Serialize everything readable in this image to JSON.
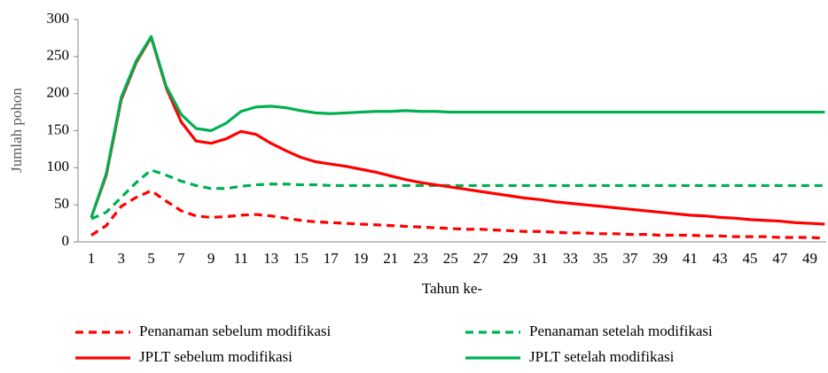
{
  "chart_data": {
    "type": "line",
    "y_label": "Jumlah pohon",
    "x_label": "Tahun ke-",
    "categories": [
      "1",
      null,
      "3",
      null,
      "5",
      null,
      "7",
      null,
      "9",
      null,
      "11",
      null,
      "13",
      null,
      "15",
      null,
      "17",
      null,
      "19",
      null,
      "21",
      null,
      "23",
      null,
      "25",
      null,
      "27",
      null,
      "29",
      null,
      "31",
      null,
      "33",
      null,
      "35",
      null,
      "37",
      null,
      "39",
      null,
      "41",
      null,
      "43",
      null,
      "45",
      null,
      "47",
      null,
      "49",
      null
    ],
    "ylim": [
      0,
      300
    ],
    "yticks": [
      0,
      50,
      100,
      150,
      200,
      250,
      300
    ],
    "grid": false,
    "series": [
      {
        "name": "Penanaman sebelum modifikasi",
        "color": "#ff0000",
        "dashed": true,
        "values": [
          9,
          22,
          48,
          60,
          69,
          55,
          42,
          35,
          33,
          34,
          36,
          37,
          35,
          32,
          29,
          27,
          26,
          25,
          24,
          23,
          22,
          21,
          20,
          19,
          18,
          17,
          17,
          16,
          15,
          14,
          14,
          13,
          12,
          12,
          11,
          11,
          10,
          10,
          9,
          9,
          9,
          8,
          8,
          7,
          7,
          7,
          6,
          6,
          6,
          5
        ]
      },
      {
        "name": "Penanaman setelah modifikasi",
        "color": "#00b050",
        "dashed": true,
        "values": [
          31,
          40,
          60,
          80,
          97,
          90,
          82,
          76,
          72,
          72,
          75,
          77,
          78,
          78,
          77,
          77,
          76,
          76,
          76,
          76,
          76,
          76,
          76,
          76,
          76,
          76,
          76,
          76,
          76,
          76,
          76,
          76,
          76,
          76,
          76,
          76,
          76,
          76,
          76,
          76,
          76,
          76,
          76,
          76,
          76,
          76,
          76,
          76,
          76,
          76
        ]
      },
      {
        "name": "JPLT sebelum modifikasi",
        "color": "#ff0000",
        "dashed": false,
        "values": [
          33,
          90,
          192,
          242,
          276,
          208,
          162,
          136,
          133,
          139,
          149,
          145,
          133,
          123,
          114,
          108,
          105,
          102,
          98,
          94,
          89,
          84,
          80,
          77,
          74,
          71,
          68,
          65,
          62,
          59,
          57,
          54,
          52,
          50,
          48,
          46,
          44,
          42,
          40,
          38,
          36,
          35,
          33,
          32,
          30,
          29,
          28,
          26,
          25,
          24
        ]
      },
      {
        "name": "JPLT setelah modifikasi",
        "color": "#00b050",
        "dashed": false,
        "values": [
          33,
          92,
          195,
          244,
          277,
          210,
          172,
          153,
          150,
          160,
          176,
          182,
          183,
          181,
          177,
          174,
          173,
          174,
          175,
          176,
          176,
          177,
          176,
          176,
          175,
          175,
          175,
          175,
          175,
          175,
          175,
          175,
          175,
          175,
          175,
          175,
          175,
          175,
          175,
          175,
          175,
          175,
          175,
          175,
          175,
          175,
          175,
          175,
          175,
          175
        ]
      }
    ]
  }
}
